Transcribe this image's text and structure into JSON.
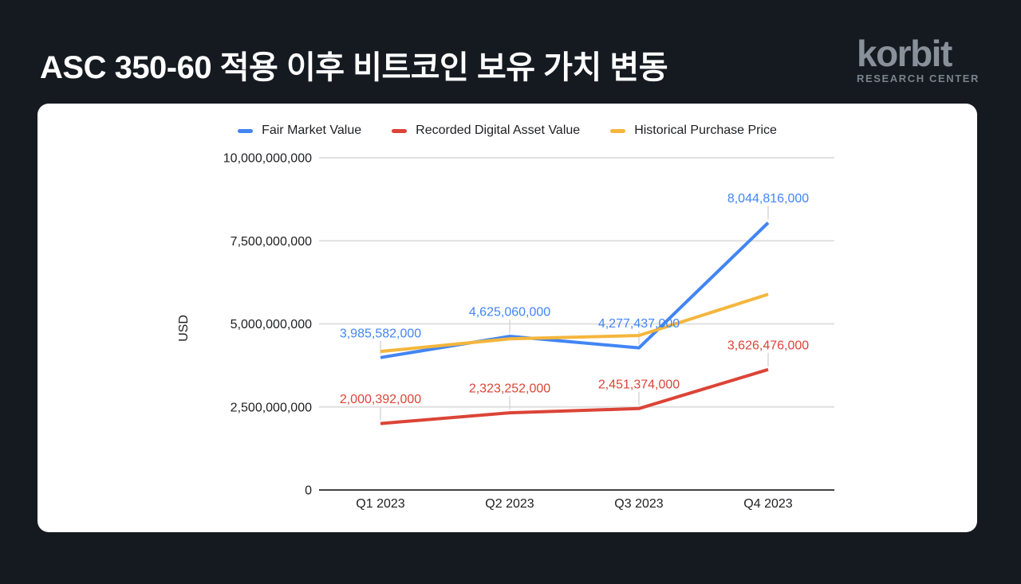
{
  "page": {
    "background_color": "#151A21",
    "card_background_color": "#FFFFFF"
  },
  "header": {
    "title": "ASC 350-60 적용 이후 비트코인 보유 가치 변동",
    "logo": {
      "brand": "korbit",
      "subtitle": "RESEARCH CENTER",
      "brand_color": "#8A9099",
      "subtitle_color": "#7A828B"
    }
  },
  "chart_data": {
    "type": "line",
    "categories": [
      "Q1 2023",
      "Q2 2023",
      "Q3 2023",
      "Q4 2023"
    ],
    "series": [
      {
        "name": "Fair Market Value",
        "color": "#4285F4",
        "values": [
          3985582000,
          4625060000,
          4277437000,
          8044816000
        ],
        "value_labels_shown": true
      },
      {
        "name": "Recorded Digital Asset Value",
        "color": "#DB4437",
        "values": [
          2000392000,
          2323252000,
          2451374000,
          3626476000
        ],
        "value_labels_shown": true
      },
      {
        "name": "Historical Purchase Price",
        "color": "#F4B63C",
        "values": [
          4170000000,
          4550000000,
          4650000000,
          5890000000
        ],
        "value_labels_shown": false,
        "estimated": true
      }
    ],
    "xlabel": "",
    "ylabel": "USD",
    "ylim": [
      0,
      10000000000
    ],
    "yticks": [
      0,
      2500000000,
      5000000000,
      7500000000,
      10000000000
    ],
    "grid": "horizontal",
    "legend_position": "top",
    "axis_text_color": "#202124",
    "grid_color": "#E0E0E0",
    "axis_line_color": "#424242",
    "leader_line_color": "#D9D9D9"
  }
}
